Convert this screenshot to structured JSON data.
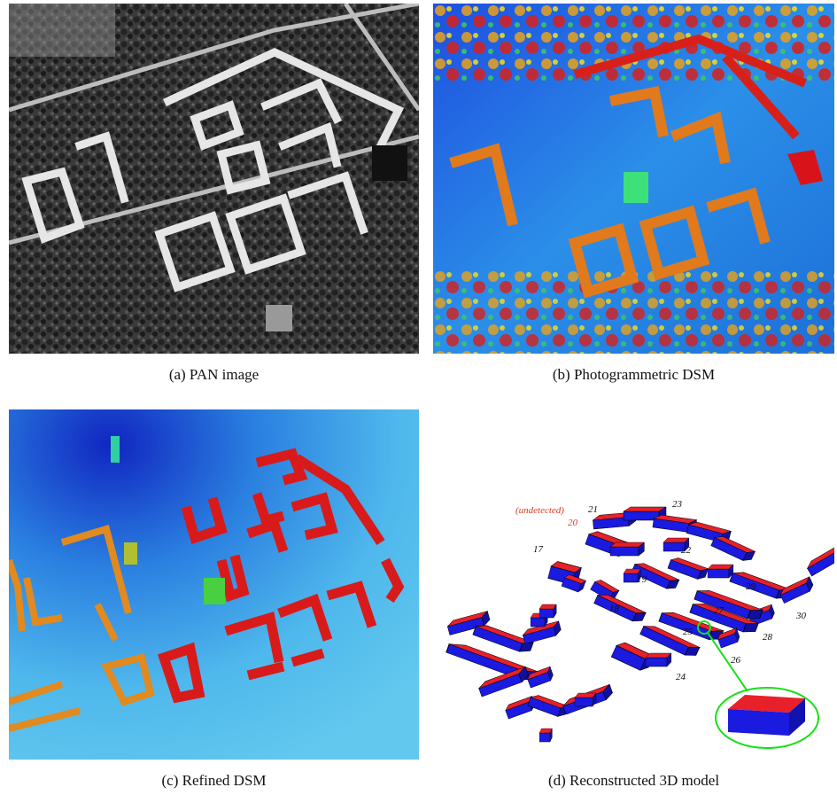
{
  "figure": {
    "panels": [
      {
        "id": "a",
        "caption": "(a)  PAN image"
      },
      {
        "id": "b",
        "caption": "(b)  Photogrammetric DSM"
      },
      {
        "id": "c",
        "caption": "(c)  Refined DSM"
      },
      {
        "id": "d",
        "caption": "(d)  Reconstructed 3D model"
      }
    ],
    "model_labels": {
      "undetected": "(undetected)",
      "l20": "20",
      "l21": "21",
      "l23": "23",
      "l17": "17",
      "l22": "22",
      "l19": "19",
      "l18": "18",
      "l29": "29",
      "l27": "27",
      "l30": "30",
      "l25": "25",
      "l28": "28",
      "l26": "26",
      "l24": "24"
    },
    "colors": {
      "roof": "#e8202a",
      "wall": "#1a1ae0",
      "highlight": "#19e019",
      "dsm_low": "#1a3fd6",
      "dsm_high": "#d8141a"
    }
  }
}
